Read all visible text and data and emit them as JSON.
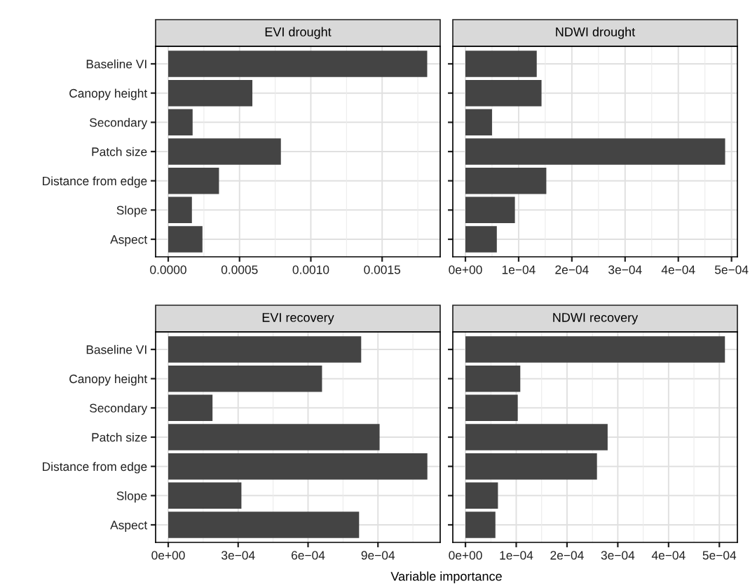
{
  "chart_data": [
    {
      "type": "bar",
      "orientation": "horizontal",
      "title": "EVI drought",
      "categories": [
        "Baseline VI",
        "Canopy height",
        "Secondary",
        "Patch size",
        "Distance from edge",
        "Slope",
        "Aspect"
      ],
      "values": [
        0.001816,
        0.00059,
        0.000171,
        0.00079,
        0.000356,
        0.000166,
        0.00024
      ],
      "color": "#444444",
      "xlim": [
        -8.85e-05,
        0.001907
      ],
      "xticks": [
        {
          "value": 0,
          "label": "0.0000"
        },
        {
          "value": 0.0005,
          "label": "0.0005"
        },
        {
          "value": 0.001,
          "label": "0.0010"
        },
        {
          "value": 0.0015,
          "label": "0.0015"
        }
      ],
      "grid": true
    },
    {
      "type": "bar",
      "orientation": "horizontal",
      "title": "NDWI drought",
      "categories": [
        null,
        null,
        null,
        null,
        null,
        null,
        null
      ],
      "values": [
        0.000134,
        0.000143,
        5e-05,
        0.000488,
        0.000152,
        9.3e-05,
        5.9e-05
      ],
      "color": "#444444",
      "xlim": [
        -2.37e-05,
        0.000511
      ],
      "xticks": [
        {
          "value": 0,
          "label": "0e+00"
        },
        {
          "value": 0.0001,
          "label": "1e−04"
        },
        {
          "value": 0.0002,
          "label": "2e−04"
        },
        {
          "value": 0.0003,
          "label": "3e−04"
        },
        {
          "value": 0.0004,
          "label": "4e−04"
        },
        {
          "value": 0.0005,
          "label": "5e−04"
        }
      ],
      "grid": true,
      "tick_labels": "x"
    },
    {
      "type": "bar",
      "orientation": "horizontal",
      "title": "EVI recovery",
      "categories": [
        "Baseline VI",
        "Canopy height",
        "Secondary",
        "Patch size",
        "Distance from edge",
        "Slope",
        "Aspect"
      ],
      "values": [
        0.000828,
        0.00066,
        0.00019,
        0.000907,
        0.001112,
        0.000314,
        0.000819
      ],
      "color": "#444444",
      "xlim": [
        -5.42e-05,
        0.001167
      ],
      "xticks": [
        {
          "value": 0,
          "label": "0e+00"
        },
        {
          "value": 0.0003,
          "label": "3e−04"
        },
        {
          "value": 0.0006,
          "label": "6e−04"
        },
        {
          "value": 0.0009,
          "label": "9e−04"
        }
      ],
      "grid": true
    },
    {
      "type": "bar",
      "orientation": "horizontal",
      "title": "NDWI recovery",
      "xlabel": "Variable importance",
      "categories": [
        null,
        null,
        null,
        null,
        null,
        null,
        null
      ],
      "values": [
        0.000511,
        0.000108,
        0.000103,
        0.00028,
        0.000259,
        6.4e-05,
        5.9e-05
      ],
      "color": "#444444",
      "xlim": [
        -2.49e-05,
        0.0005355
      ],
      "xticks": [
        {
          "value": 0,
          "label": "0e+00"
        },
        {
          "value": 0.0001,
          "label": "1e−04"
        },
        {
          "value": 0.0002,
          "label": "2e−04"
        },
        {
          "value": 0.0003,
          "label": "3e−04"
        },
        {
          "value": 0.0004,
          "label": "4e−04"
        },
        {
          "value": 0.0005,
          "label": "5e−04"
        }
      ],
      "grid": true,
      "tick_labels": "x"
    }
  ]
}
